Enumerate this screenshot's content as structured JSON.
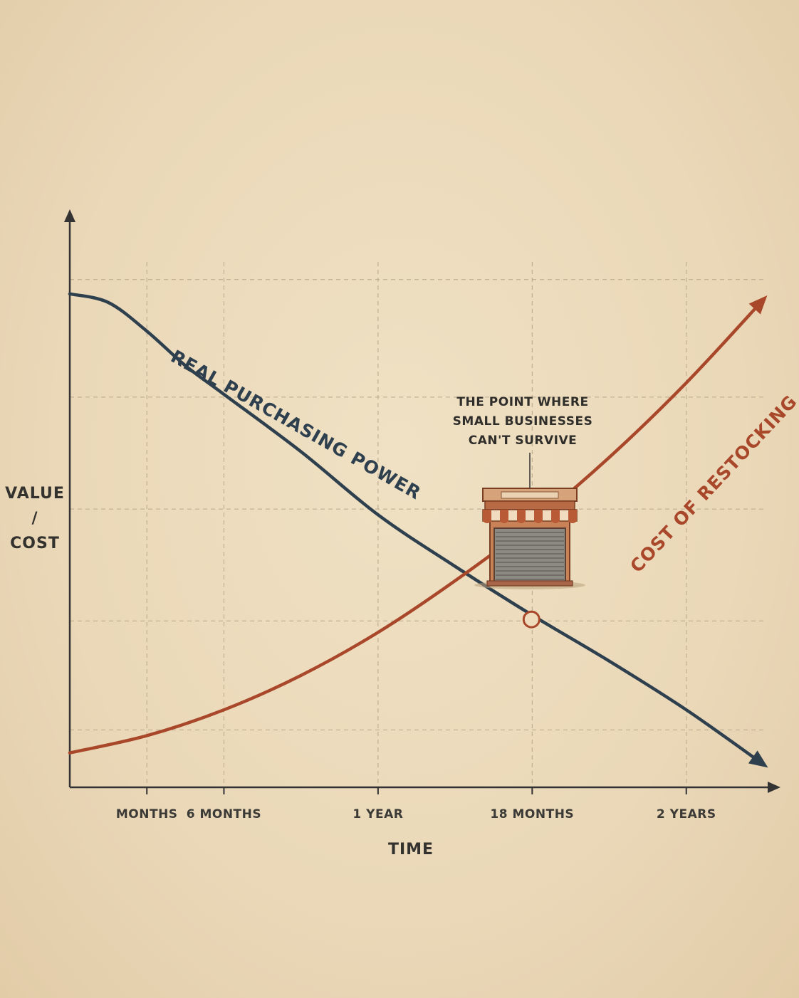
{
  "chart_data": {
    "type": "line",
    "title": "",
    "xlabel": "TIME",
    "ylabel": [
      "VALUE",
      "/",
      "COST"
    ],
    "x_ticks": [
      "MONTHS",
      "6 MONTHS",
      "1 YEAR",
      "18 MONTHS",
      "2 YEARS"
    ],
    "x_tick_values": [
      3,
      6,
      12,
      18,
      24
    ],
    "xlim": [
      0,
      27.5
    ],
    "ylim": [
      0,
      10
    ],
    "grid": true,
    "series": [
      {
        "name": "REAL PURCHASING POWER",
        "color": "#2e3f4e",
        "points": [
          [
            0,
            8.6
          ],
          [
            1.5,
            8.45
          ],
          [
            3,
            7.95
          ],
          [
            4.5,
            7.35
          ],
          [
            6,
            6.85
          ],
          [
            9,
            5.85
          ],
          [
            12,
            4.75
          ],
          [
            15,
            3.85
          ],
          [
            18,
            3.0
          ],
          [
            21,
            2.2
          ],
          [
            24,
            1.35
          ],
          [
            27,
            0.4
          ]
        ]
      },
      {
        "name": "COST OF RESTOCKING",
        "color": "#a9472a",
        "points": [
          [
            0,
            0.6
          ],
          [
            3,
            0.9
          ],
          [
            6,
            1.35
          ],
          [
            9,
            1.95
          ],
          [
            12,
            2.7
          ],
          [
            15,
            3.6
          ],
          [
            18,
            4.6
          ],
          [
            21,
            5.75
          ],
          [
            24,
            7.05
          ],
          [
            27,
            8.5
          ]
        ]
      }
    ],
    "annotations": [
      {
        "text": [
          "THE POINT WHERE",
          "SMALL BUSINESSES",
          "CAN'T SURVIVE"
        ],
        "x": 18.0,
        "y": 3.0
      }
    ]
  },
  "icons": {
    "storefront": "storefront-closed-icon",
    "crossing_marker": "crossing-circle-icon"
  }
}
